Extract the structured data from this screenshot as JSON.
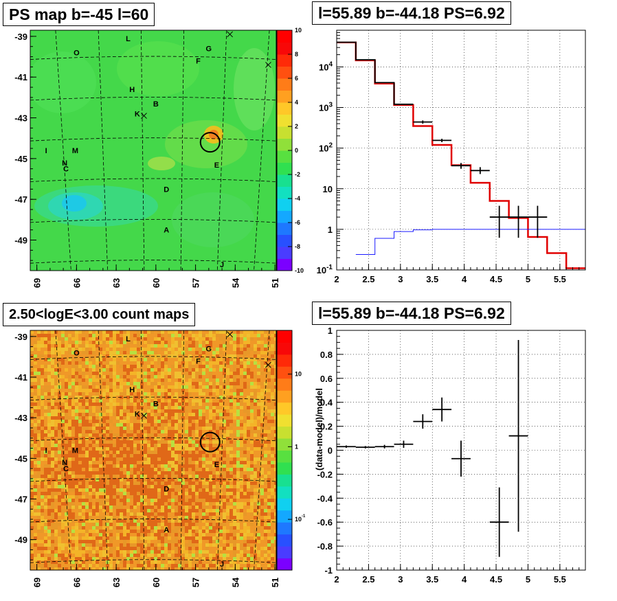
{
  "panels": {
    "top_left_title": "PS map b=-45 l=60",
    "top_right_title": "l=55.89 b=-44.18 PS=6.92",
    "bottom_left_title": "2.50<logE<3.00 count maps",
    "bottom_right_title": "l=55.89 b=-44.18 PS=6.92"
  },
  "chart_data": [
    {
      "type": "heatmap",
      "name": "ps-map",
      "title": "PS map b=-45 l=60",
      "x_ticks": [
        "69",
        "66",
        "63",
        "60",
        "57",
        "54",
        "51"
      ],
      "y_ticks": [
        "-39",
        "-41",
        "-43",
        "-45",
        "-47",
        "-49"
      ],
      "xlim": [
        69.5,
        50.9
      ],
      "ylim": [
        -50.5,
        -38.7
      ],
      "colorbar_ticks": [
        "10",
        "8",
        "6",
        "4",
        "2",
        "0",
        "-2",
        "-4",
        "-6",
        "-8",
        "-10"
      ],
      "colorbar_range": [
        -10,
        10
      ],
      "sources": [
        {
          "label": "L",
          "l": 62.1,
          "b": -39.1
        },
        {
          "label": "O",
          "l": 66.0,
          "b": -39.8
        },
        {
          "label": "G",
          "l": 56.0,
          "b": -39.6
        },
        {
          "label": "F",
          "l": 56.8,
          "b": -40.2
        },
        {
          "label": "H",
          "l": 61.8,
          "b": -41.6
        },
        {
          "label": "B",
          "l": 60.0,
          "b": -42.3
        },
        {
          "label": "K",
          "l": 61.4,
          "b": -42.8
        },
        {
          "label": "M",
          "l": 66.1,
          "b": -44.6
        },
        {
          "label": "I",
          "l": 68.3,
          "b": -44.6
        },
        {
          "label": "N",
          "l": 66.9,
          "b": -45.2
        },
        {
          "label": "C",
          "l": 66.8,
          "b": -45.5
        },
        {
          "label": "E",
          "l": 55.4,
          "b": -45.3
        },
        {
          "label": "D",
          "l": 59.2,
          "b": -46.5
        },
        {
          "label": "A",
          "l": 59.2,
          "b": -48.5
        },
        {
          "label": "J",
          "l": 55.0,
          "b": -50.2
        }
      ],
      "crosses": [
        {
          "l": 54.4,
          "b": -38.9
        },
        {
          "l": 51.5,
          "b": -40.4
        },
        {
          "l": 60.9,
          "b": -42.9
        }
      ],
      "circle": {
        "l": 55.9,
        "b": -44.2
      }
    },
    {
      "type": "line",
      "name": "spectrum",
      "title": "l=55.89 b=-44.18 PS=6.92",
      "x_ticks": [
        "2",
        "2.5",
        "3",
        "3.5",
        "4",
        "4.5",
        "5",
        "5.5"
      ],
      "xlim": [
        2.0,
        5.9
      ],
      "y_scale": "log",
      "y_ticks": [
        "10^-1",
        "1",
        "10",
        "10^2",
        "10^3",
        "10^4"
      ],
      "ylim": [
        0.1,
        80000
      ],
      "grid": true,
      "series": [
        {
          "style": "step",
          "color": "#e00000",
          "edges": [
            2.0,
            2.3,
            2.6,
            2.9,
            3.2,
            3.5,
            3.8,
            4.1,
            4.4,
            4.7,
            5.0,
            5.3,
            5.6,
            5.9
          ],
          "values": [
            40000,
            14500,
            3900,
            1150,
            350,
            120,
            38,
            14,
            5,
            1.9,
            0.65,
            0.26,
            0.11
          ]
        },
        {
          "style": "step",
          "color": "#000000",
          "edges": [
            2.0,
            2.3,
            2.6,
            2.9,
            3.2,
            3.5,
            3.8,
            4.1
          ],
          "values": [
            40500,
            15000,
            4100,
            1200,
            0,
            0,
            0
          ]
        },
        {
          "style": "step",
          "color": "#1a1aff",
          "edges": [
            2.3,
            2.6,
            2.9,
            3.2,
            3.5,
            3.8,
            4.1,
            4.4,
            4.7,
            5.0,
            5.3,
            5.6,
            5.9
          ],
          "values": [
            0.24,
            0.6,
            0.88,
            0.97,
            1.0,
            1.0,
            1.0,
            1.0,
            1.0,
            1.0,
            1.0,
            1.0
          ]
        },
        {
          "style": "points",
          "color": "#000000",
          "points": [
            {
              "x": 3.35,
              "y": 440,
              "xerr": 0.15,
              "ylo": 400,
              "yhi": 480
            },
            {
              "x": 3.65,
              "y": 155,
              "xerr": 0.15,
              "ylo": 140,
              "yhi": 170
            },
            {
              "x": 3.95,
              "y": 37,
              "xerr": 0.15,
              "ylo": 31,
              "yhi": 43
            },
            {
              "x": 4.25,
              "y": 28,
              "xerr": 0.15,
              "ylo": 23,
              "yhi": 34
            },
            {
              "x": 4.55,
              "y": 2.0,
              "xerr": 0.15,
              "ylo": 0.62,
              "yhi": 3.8
            },
            {
              "x": 4.85,
              "y": 2.0,
              "xerr": 0.15,
              "ylo": 0.62,
              "yhi": 3.8
            },
            {
              "x": 5.15,
              "y": 2.0,
              "xerr": 0.15,
              "ylo": 0.62,
              "yhi": 3.8
            }
          ]
        }
      ]
    },
    {
      "type": "heatmap",
      "name": "count-map",
      "title": "2.50<logE<3.00 count maps",
      "x_ticks": [
        "69",
        "66",
        "63",
        "60",
        "57",
        "54",
        "51"
      ],
      "y_ticks": [
        "-39",
        "-41",
        "-43",
        "-45",
        "-47",
        "-49"
      ],
      "xlim": [
        69.5,
        50.9
      ],
      "ylim": [
        -50.5,
        -38.7
      ],
      "colorbar_scale": "log",
      "colorbar_ticks": [
        "10",
        "1",
        "10^-1"
      ],
      "colorbar_range": [
        0.02,
        40
      ],
      "sources": [
        {
          "label": "L",
          "l": 62.1,
          "b": -39.1
        },
        {
          "label": "O",
          "l": 66.0,
          "b": -39.8
        },
        {
          "label": "G",
          "l": 56.0,
          "b": -39.6
        },
        {
          "label": "F",
          "l": 56.8,
          "b": -40.2
        },
        {
          "label": "H",
          "l": 61.8,
          "b": -41.6
        },
        {
          "label": "B",
          "l": 60.0,
          "b": -42.3
        },
        {
          "label": "K",
          "l": 61.4,
          "b": -42.8
        },
        {
          "label": "M",
          "l": 66.1,
          "b": -44.6
        },
        {
          "label": "I",
          "l": 68.3,
          "b": -44.6
        },
        {
          "label": "N",
          "l": 66.9,
          "b": -45.2
        },
        {
          "label": "C",
          "l": 66.8,
          "b": -45.5
        },
        {
          "label": "E",
          "l": 55.4,
          "b": -45.3
        },
        {
          "label": "D",
          "l": 59.2,
          "b": -46.5
        },
        {
          "label": "A",
          "l": 59.2,
          "b": -48.5
        },
        {
          "label": "J",
          "l": 55.0,
          "b": -50.2
        }
      ],
      "crosses": [
        {
          "l": 54.4,
          "b": -38.9
        },
        {
          "l": 51.5,
          "b": -40.4
        },
        {
          "l": 60.9,
          "b": -42.9
        }
      ],
      "circle": {
        "l": 55.9,
        "b": -44.2
      }
    },
    {
      "type": "scatter",
      "name": "residuals",
      "title": "l=55.89 b=-44.18 PS=6.92",
      "ylabel": "(data-model)/model",
      "x_ticks": [
        "2",
        "2.5",
        "3",
        "3.5",
        "4",
        "4.5",
        "5",
        "5.5"
      ],
      "y_ticks": [
        "1",
        "0.8",
        "0.6",
        "0.4",
        "0.2",
        "0",
        "-0.2",
        "-0.4",
        "-0.6",
        "-0.8",
        "-1"
      ],
      "xlim": [
        2.0,
        5.9
      ],
      "ylim": [
        -1.0,
        1.0
      ],
      "grid": true,
      "points": [
        {
          "x": 2.15,
          "y": 0.03,
          "xerr": 0.15,
          "yerr": 0.01
        },
        {
          "x": 2.45,
          "y": 0.025,
          "xerr": 0.15,
          "yerr": 0.01
        },
        {
          "x": 2.75,
          "y": 0.03,
          "xerr": 0.15,
          "yerr": 0.015
        },
        {
          "x": 3.05,
          "y": 0.05,
          "xerr": 0.15,
          "yerr": 0.03
        },
        {
          "x": 3.35,
          "y": 0.24,
          "xerr": 0.15,
          "yerr": 0.06
        },
        {
          "x": 3.65,
          "y": 0.34,
          "xerr": 0.15,
          "yerr": 0.1
        },
        {
          "x": 3.95,
          "y": -0.07,
          "xerr": 0.15,
          "yerr": 0.15
        },
        {
          "x": 4.55,
          "y": -0.6,
          "xerr": 0.15,
          "yerr": 0.29
        },
        {
          "x": 4.85,
          "y": 0.12,
          "xerr": 0.15,
          "yerr": 0.8
        }
      ]
    }
  ]
}
